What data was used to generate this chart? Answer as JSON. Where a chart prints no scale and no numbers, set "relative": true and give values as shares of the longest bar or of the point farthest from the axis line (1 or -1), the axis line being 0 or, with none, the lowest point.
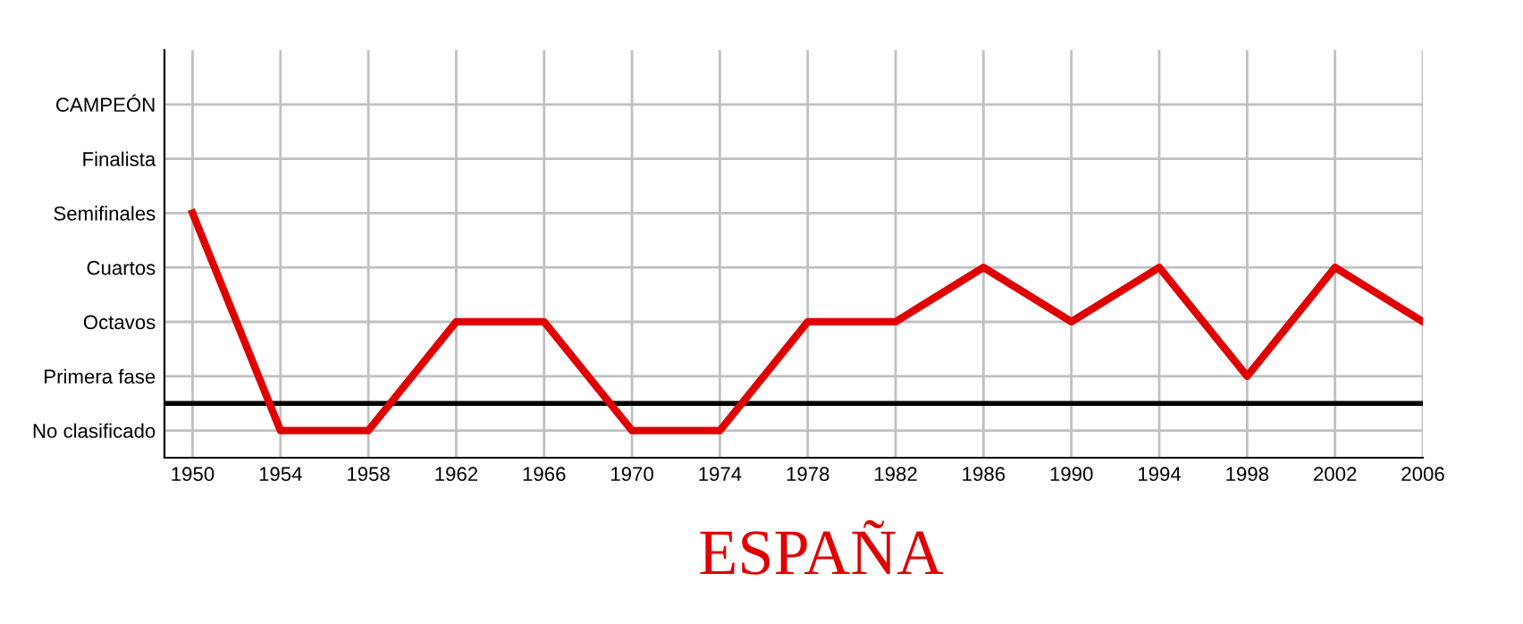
{
  "chart_data": {
    "type": "line",
    "title": "ESPAÑA",
    "categories": [
      "1950",
      "1954",
      "1958",
      "1962",
      "1966",
      "1970",
      "1974",
      "1978",
      "1982",
      "1986",
      "1990",
      "1994",
      "1998",
      "2002",
      "2006"
    ],
    "series": [
      {
        "color": "#e00000",
        "values": [
          1,
          0.111,
          0.111,
          0.556,
          0.556,
          0.111,
          0.111,
          0.556,
          0.556,
          0.778,
          0.556,
          0.778,
          0.333,
          0.778,
          0.556
        ]
      }
    ],
    "relative": true,
    "annotations": [
      "No clasificado",
      "Primera fase",
      "Octavos",
      "Cuartos",
      "Semifinales",
      "Finalista",
      "CAMPEÓN"
    ],
    "ref_lines": [
      {
        "axis": "y",
        "value": 0.222,
        "color": "#000000"
      }
    ],
    "grid": true,
    "marker": "none",
    "line_style": "solid",
    "legend": false
  }
}
